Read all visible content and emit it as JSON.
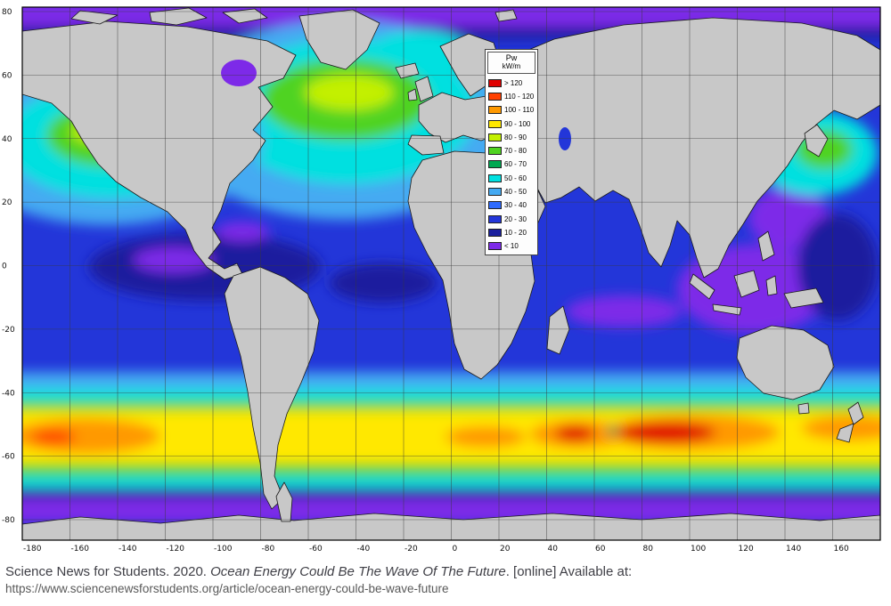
{
  "map": {
    "land_color": "#c8c8c8",
    "ocean_base_color": "#2336d9",
    "lat_ticks": [
      80,
      60,
      40,
      20,
      0,
      -20,
      -40,
      -60,
      -80
    ],
    "lon_ticks": [
      -180,
      -160,
      -140,
      -120,
      -100,
      -80,
      -60,
      -40,
      -20,
      0,
      20,
      40,
      60,
      80,
      100,
      120,
      140,
      160
    ]
  },
  "legend": {
    "title_line1": "Pw",
    "title_line2": "kW/m",
    "entries": [
      {
        "label": "> 120",
        "color": "#e00000"
      },
      {
        "label": "110 - 120",
        "color": "#ff4000"
      },
      {
        "label": "100 - 110",
        "color": "#ff9900"
      },
      {
        "label": "90 - 100",
        "color": "#ffe800"
      },
      {
        "label": "80 - 90",
        "color": "#c3f000"
      },
      {
        "label": "70 - 80",
        "color": "#4fd320"
      },
      {
        "label": "60 - 70",
        "color": "#00a851"
      },
      {
        "label": "50 - 60",
        "color": "#00e0e0"
      },
      {
        "label": "40 - 50",
        "color": "#45aaf2"
      },
      {
        "label": "30 - 40",
        "color": "#2e6bff"
      },
      {
        "label": "20 - 30",
        "color": "#2336d9"
      },
      {
        "label": "10 - 20",
        "color": "#1a1f9e"
      },
      {
        "label": "< 10",
        "color": "#7d2ae8"
      }
    ]
  },
  "citation": {
    "prefix": "Science News for Students. 2020. ",
    "title": "Ocean Energy Could Be The Wave Of The Future",
    "suffix": ". [online] Available at:",
    "url": "https://www.sciencenewsforstudents.org/article/ocean-energy-could-be-wave-future"
  }
}
